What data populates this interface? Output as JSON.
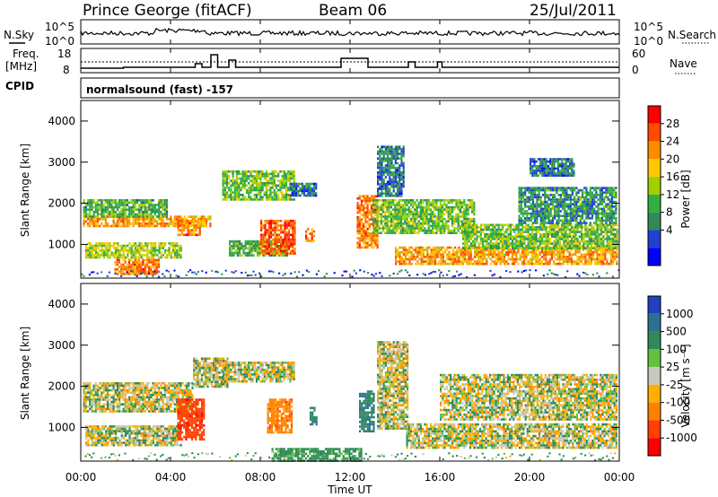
{
  "header": {
    "station": "Prince George (fitACF)",
    "beam": "Beam 06",
    "date": "25/Jul/2011"
  },
  "sky_panel": {
    "left_label": "N.Sky",
    "right_label": "N.Search",
    "ticks_left": [
      "10^5",
      "10^0"
    ],
    "ticks_right": [
      "10^5",
      "10^0"
    ]
  },
  "freq_panel": {
    "left_label_1": "Freq.",
    "left_label_2": "[MHz]",
    "ticks_left": [
      "18",
      "8"
    ],
    "ticks_right": [
      "60",
      "0"
    ],
    "right_label": "Nave"
  },
  "cpid": {
    "label": "CPID",
    "program": "normalsound (fast) -157"
  },
  "axes": {
    "xlabel": "Time UT",
    "xticks": [
      "00:00",
      "04:00",
      "08:00",
      "12:00",
      "16:00",
      "20:00",
      "00:00"
    ],
    "ylabel": "Slant Range [km]",
    "yticks": [
      "4000",
      "3000",
      "2000",
      "1000"
    ]
  },
  "power_scale": {
    "label": "Power [dB]",
    "ticks": [
      "28",
      "24",
      "20",
      "16",
      "12",
      "8",
      "4"
    ],
    "colors": [
      "#ff0000",
      "#ff4a00",
      "#ff8c00",
      "#ffc800",
      "#a0d000",
      "#30b040",
      "#2e8b57",
      "#2040d0",
      "#0000ff"
    ]
  },
  "velocity_scale": {
    "label": "Velocity [m s⁻¹]",
    "ticks": [
      "1000",
      "500",
      "100",
      "25",
      "-25",
      "-100",
      "-500",
      "-1000"
    ],
    "colors": [
      "#2040c0",
      "#2e7090",
      "#2e8b57",
      "#66c040",
      "#c8c8c0",
      "#ffb000",
      "#ff8000",
      "#ff4000",
      "#ff0000"
    ]
  },
  "chart_data": {
    "type": "heatmap",
    "x_range_hours": [
      0,
      24
    ],
    "y_range_km": [
      180,
      4500
    ],
    "freq_steps": [
      [
        0.0,
        1.9,
        9.5
      ],
      [
        1.9,
        5.1,
        10
      ],
      [
        5.1,
        5.4,
        12
      ],
      [
        5.4,
        5.8,
        10
      ],
      [
        5.8,
        6.1,
        17
      ],
      [
        6.1,
        6.6,
        10
      ],
      [
        6.6,
        6.9,
        14
      ],
      [
        6.9,
        11.6,
        10
      ],
      [
        11.6,
        12.8,
        15
      ],
      [
        12.8,
        14.6,
        10
      ],
      [
        14.6,
        14.9,
        13
      ],
      [
        14.9,
        15.9,
        10
      ],
      [
        15.9,
        16.1,
        13
      ],
      [
        16.1,
        24.0,
        10
      ]
    ],
    "power_clusters": [
      {
        "x0": 0.1,
        "x1": 5.8,
        "y0": 1450,
        "y1": 1700,
        "db": 22
      },
      {
        "x0": 0.1,
        "x1": 3.8,
        "y0": 1700,
        "y1": 2100,
        "db": 12
      },
      {
        "x0": 0.2,
        "x1": 4.5,
        "y0": 700,
        "y1": 1050,
        "db": 16
      },
      {
        "x0": 1.5,
        "x1": 3.5,
        "y0": 300,
        "y1": 650,
        "db": 24
      },
      {
        "x0": 4.3,
        "x1": 5.3,
        "y0": 1250,
        "y1": 1600,
        "db": 24
      },
      {
        "x0": 6.3,
        "x1": 9.5,
        "y0": 2100,
        "y1": 2800,
        "db": 14
      },
      {
        "x0": 6.6,
        "x1": 9.2,
        "y0": 750,
        "y1": 1100,
        "db": 12
      },
      {
        "x0": 8.0,
        "x1": 9.5,
        "y0": 800,
        "y1": 1600,
        "db": 26
      },
      {
        "x0": 9.3,
        "x1": 10.5,
        "y0": 2200,
        "y1": 2500,
        "db": 8
      },
      {
        "x0": 10.0,
        "x1": 10.4,
        "y0": 1100,
        "y1": 1400,
        "db": 24
      },
      {
        "x0": 12.3,
        "x1": 13.2,
        "y0": 900,
        "y1": 2200,
        "db": 24
      },
      {
        "x0": 13.2,
        "x1": 14.4,
        "y0": 2200,
        "y1": 3400,
        "db": 8
      },
      {
        "x0": 13.0,
        "x1": 17.5,
        "y0": 1300,
        "y1": 2100,
        "db": 14
      },
      {
        "x0": 14.0,
        "x1": 23.9,
        "y0": 550,
        "y1": 950,
        "db": 22
      },
      {
        "x0": 17.0,
        "x1": 23.9,
        "y0": 900,
        "y1": 1500,
        "db": 14
      },
      {
        "x0": 19.5,
        "x1": 23.9,
        "y0": 1500,
        "y1": 2400,
        "db": 10
      },
      {
        "x0": 20.0,
        "x1": 22.0,
        "y0": 2700,
        "y1": 3100,
        "db": 8
      }
    ],
    "velocity_clusters": [
      {
        "x0": 0.1,
        "x1": 5.0,
        "y0": 1400,
        "y1": 2100,
        "v": 0
      },
      {
        "x0": 0.2,
        "x1": 4.5,
        "y0": 550,
        "y1": 1050,
        "v": 0
      },
      {
        "x0": 4.3,
        "x1": 5.5,
        "y0": 700,
        "y1": 1700,
        "v": -600
      },
      {
        "x0": 5.0,
        "x1": 6.5,
        "y0": 2000,
        "y1": 2700,
        "v": 0
      },
      {
        "x0": 6.3,
        "x1": 9.5,
        "y0": 2100,
        "y1": 2600,
        "v": 0
      },
      {
        "x0": 8.3,
        "x1": 9.4,
        "y0": 850,
        "y1": 1700,
        "v": -200
      },
      {
        "x0": 10.2,
        "x1": 10.5,
        "y0": 1100,
        "y1": 1500,
        "v": 300
      },
      {
        "x0": 12.4,
        "x1": 13.1,
        "y0": 900,
        "y1": 1900,
        "v": 300
      },
      {
        "x0": 13.2,
        "x1": 14.6,
        "y0": 1000,
        "y1": 3100,
        "v": 0
      },
      {
        "x0": 14.5,
        "x1": 23.9,
        "y0": 500,
        "y1": 1100,
        "v": 0
      },
      {
        "x0": 16.0,
        "x1": 23.9,
        "y0": 1200,
        "y1": 2300,
        "v": 0
      },
      {
        "x0": 8.5,
        "x1": 12.5,
        "y0": 200,
        "y1": 500,
        "v": 150
      }
    ]
  }
}
